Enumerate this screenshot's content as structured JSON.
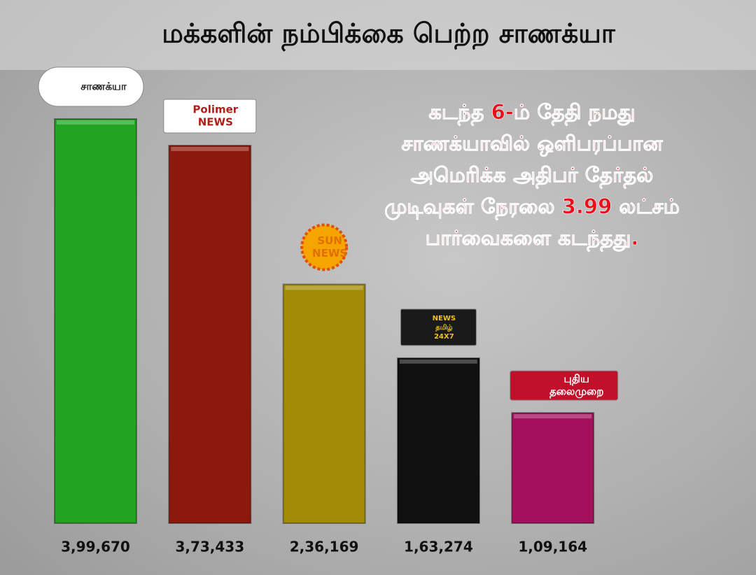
{
  "chart_data": {
    "type": "bar",
    "title": "மக்களின் நம்பிக்கை பெற்ற சாணக்யா",
    "annotation": [
      "கடந்த 6-ம் தேதி நமது",
      "சாணக்யாவில் ஒளிபரப்பான",
      "அமெரிக்க அதிபர் தேர்தல்",
      "முடிவுகள் நேரலை 3.99 லட்சம்",
      "பார்வைகளை கடந்தது."
    ],
    "categories": [
      [
        "சாணக்யா"
      ],
      [
        "Polimer",
        "NEWS"
      ],
      [
        "SUN",
        "NEWS"
      ],
      [
        "NEWS",
        "தமிழ்",
        "24X7"
      ],
      [
        "புதிய",
        "தலைமுறை"
      ]
    ],
    "values": [
      399670,
      373433,
      236169,
      163274,
      109164
    ],
    "value_labels": [
      "3,99,670",
      "3,73,433",
      "2,36,169",
      "1,63,274",
      "1,09,164"
    ],
    "colors": [
      "#22a422",
      "#8c1a0c",
      "#a38c05",
      "#101010",
      "#a3105c"
    ]
  }
}
